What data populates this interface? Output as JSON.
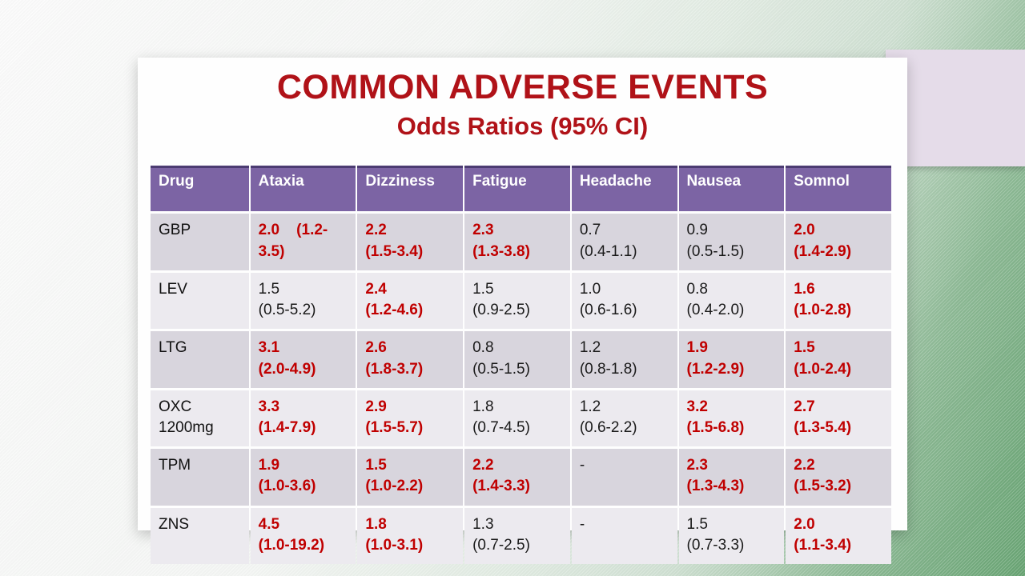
{
  "slide": {
    "title": "COMMON ADVERSE EVENTS",
    "subtitle": "Odds Ratios (95% CI)",
    "title_color": "#b01218"
  },
  "colors": {
    "header_purple": "#7c64a4",
    "header_border": "#4c3c72",
    "row_dark": "#d8d5dd",
    "row_light": "#eceaef",
    "significant_red": "#c00000",
    "background_green": "#68a473",
    "accent_lavender": "#e5dce9"
  },
  "table": {
    "columns": [
      "Drug",
      "Ataxia",
      "Dizziness",
      "Fatigue",
      "Headache",
      "Nausea",
      "Somnol"
    ],
    "rows": [
      {
        "drug": "GBP",
        "cells": [
          {
            "text": "2.0    (1.2-\n3.5)",
            "significant": true
          },
          {
            "text": "2.2\n(1.5-3.4)",
            "significant": true
          },
          {
            "text": "2.3\n(1.3-3.8)",
            "significant": true
          },
          {
            "text": "0.7\n(0.4-1.1)",
            "significant": false
          },
          {
            "text": "0.9\n(0.5-1.5)",
            "significant": false
          },
          {
            "text": "2.0\n(1.4-2.9)",
            "significant": true
          }
        ]
      },
      {
        "drug": "LEV",
        "cells": [
          {
            "text": "1.5\n(0.5-5.2)",
            "significant": false
          },
          {
            "text": "2.4\n(1.2-4.6)",
            "significant": true
          },
          {
            "text": "1.5\n(0.9-2.5)",
            "significant": false
          },
          {
            "text": "1.0\n(0.6-1.6)",
            "significant": false
          },
          {
            "text": "0.8\n(0.4-2.0)",
            "significant": false
          },
          {
            "text": "1.6\n(1.0-2.8)",
            "significant": true
          }
        ]
      },
      {
        "drug": "LTG",
        "cells": [
          {
            "text": "3.1\n(2.0-4.9)",
            "significant": true
          },
          {
            "text": "2.6\n(1.8-3.7)",
            "significant": true
          },
          {
            "text": "0.8\n(0.5-1.5)",
            "significant": false
          },
          {
            "text": "1.2\n(0.8-1.8)",
            "significant": false
          },
          {
            "text": "1.9\n(1.2-2.9)",
            "significant": true
          },
          {
            "text": "1.5\n(1.0-2.4)",
            "significant": true
          }
        ]
      },
      {
        "drug": "OXC\n1200mg",
        "cells": [
          {
            "text": "3.3\n(1.4-7.9)",
            "significant": true
          },
          {
            "text": "2.9\n(1.5-5.7)",
            "significant": true
          },
          {
            "text": "1.8\n(0.7-4.5)",
            "significant": false
          },
          {
            "text": "1.2\n(0.6-2.2)",
            "significant": false
          },
          {
            "text": "3.2\n(1.5-6.8)",
            "significant": true
          },
          {
            "text": "2.7\n(1.3-5.4)",
            "significant": true
          }
        ]
      },
      {
        "drug": "TPM",
        "cells": [
          {
            "text": "1.9\n(1.0-3.6)",
            "significant": true
          },
          {
            "text": "1.5\n(1.0-2.2)",
            "significant": true
          },
          {
            "text": "2.2\n(1.4-3.3)",
            "significant": true
          },
          {
            "text": "-",
            "significant": false
          },
          {
            "text": "2.3\n(1.3-4.3)",
            "significant": true
          },
          {
            "text": "2.2\n(1.5-3.2)",
            "significant": true
          }
        ]
      },
      {
        "drug": "ZNS",
        "cells": [
          {
            "text": "4.5\n(1.0-19.2)",
            "significant": true
          },
          {
            "text": "1.8\n(1.0-3.1)",
            "significant": true
          },
          {
            "text": "1.3\n(0.7-2.5)",
            "significant": false
          },
          {
            "text": "-",
            "significant": false
          },
          {
            "text": "1.5\n(0.7-3.3)",
            "significant": false
          },
          {
            "text": "2.0\n(1.1-3.4)",
            "significant": true
          }
        ]
      }
    ]
  }
}
